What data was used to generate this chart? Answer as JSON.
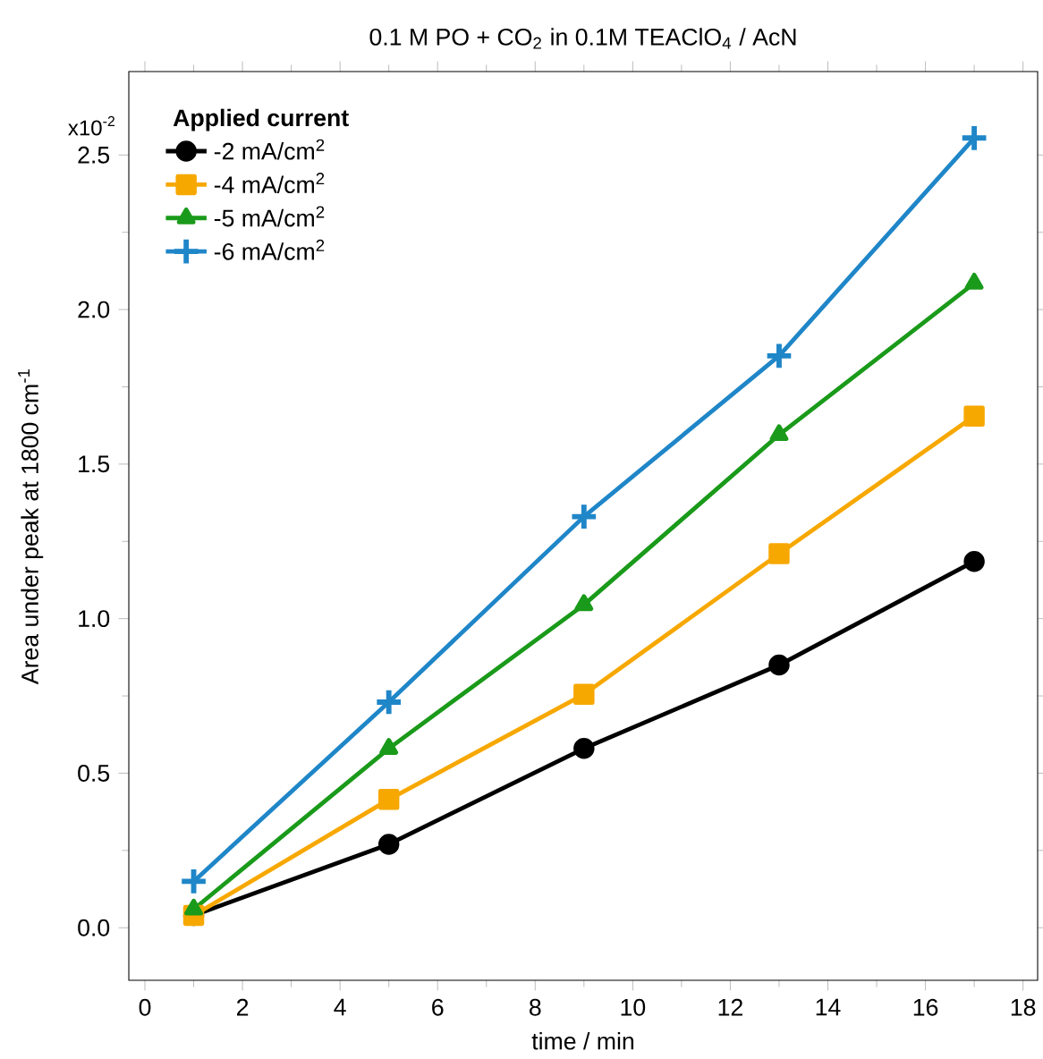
{
  "chart_data": {
    "type": "line",
    "title": "0.1 M PO + CO$_{2}$  in  0.1M TEAClO$_{4}$ / AcN",
    "xlabel": "time / min",
    "ylabel": "Area under peak at 1800 cm$^{-1}$",
    "legend_title": "Applied current",
    "legend": "top left",
    "line_style": "solid",
    "x": [
      1,
      5,
      9,
      13,
      17
    ],
    "series": [
      {
        "name": "-2 mA/cm$^{2}$",
        "color": "#000000",
        "marker": "circle",
        "values": [
          0.04,
          0.27,
          0.58,
          0.85,
          1.185
        ]
      },
      {
        "name": "-4 mA/cm$^{2}$",
        "color": "#f7a800",
        "marker": "square",
        "values": [
          0.04,
          0.415,
          0.755,
          1.21,
          1.655
        ]
      },
      {
        "name": "-5 mA/cm$^{2}$",
        "color": "#1a9a1a",
        "marker": "triangle",
        "values": [
          0.06,
          0.58,
          1.045,
          1.595,
          2.085
        ]
      },
      {
        "name": "-6 mA/cm$^{2}$",
        "color": "#1f86c8",
        "marker": "cross",
        "values": [
          0.15,
          0.73,
          1.33,
          1.85,
          2.555
        ]
      }
    ],
    "xlim": [
      -0.33,
      18.3
    ],
    "ylim": [
      -0.17,
      2.77
    ],
    "xticks": [
      0,
      2,
      4,
      6,
      8,
      10,
      12,
      14,
      16,
      18
    ],
    "yticks": [
      {
        "value": 0,
        "label": "0.0"
      },
      {
        "value": 0.5,
        "label": "0.5"
      },
      {
        "value": 1,
        "label": "1.0"
      },
      {
        "value": 1.5,
        "label": "1.5"
      },
      {
        "value": 2,
        "label": "2.0"
      },
      {
        "value": 2.5,
        "label": "2.5"
      }
    ],
    "annotations": [
      "x10$^{-2}$"
    ],
    "grid": false
  }
}
